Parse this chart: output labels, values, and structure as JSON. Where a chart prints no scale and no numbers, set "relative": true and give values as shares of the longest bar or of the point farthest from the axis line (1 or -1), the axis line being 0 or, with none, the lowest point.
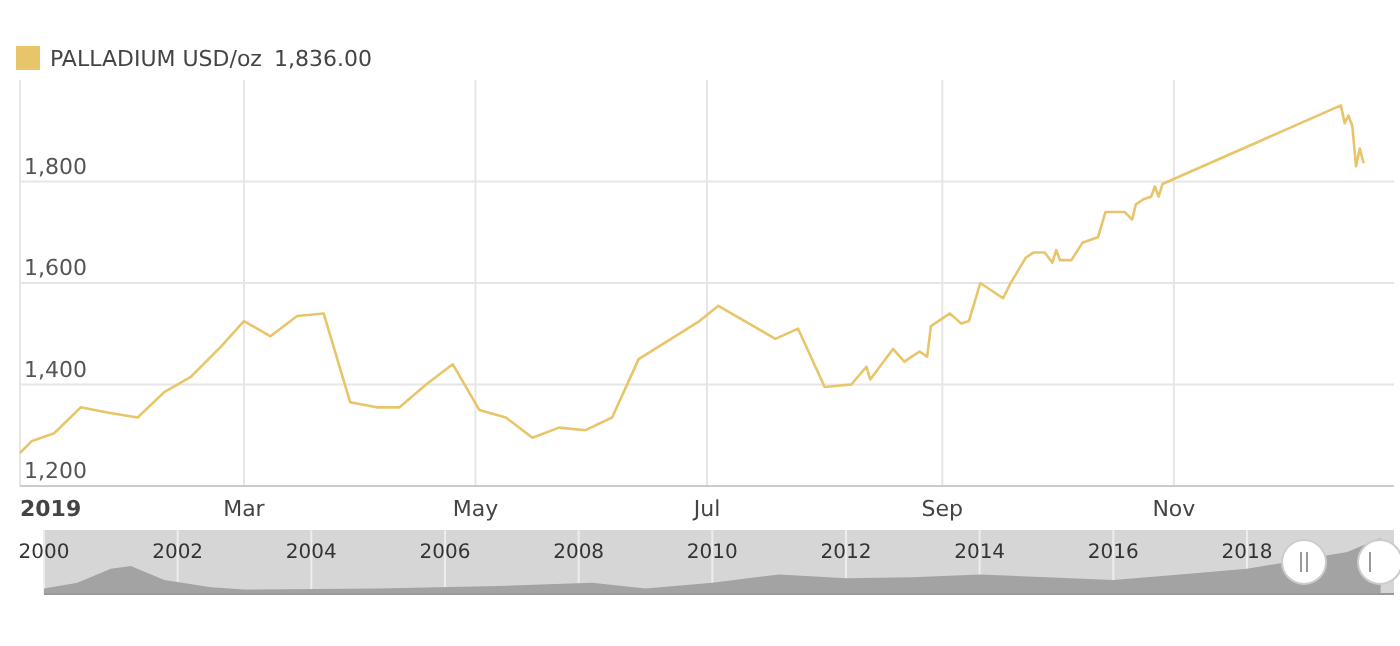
{
  "chart_data": [
    {
      "type": "line",
      "series": [
        {
          "name": "PALLADIUM USD/oz",
          "color": "#e8c56a",
          "x": [
            "2019-01-01",
            "2019-01-04",
            "2019-01-10",
            "2019-01-17",
            "2019-01-24",
            "2019-02-01",
            "2019-02-08",
            "2019-02-15",
            "2019-02-23",
            "2019-03-01",
            "2019-03-08",
            "2019-03-15",
            "2019-03-22",
            "2019-03-29",
            "2019-04-05",
            "2019-04-11",
            "2019-04-18",
            "2019-04-25",
            "2019-05-02",
            "2019-05-09",
            "2019-05-16",
            "2019-05-23",
            "2019-05-30",
            "2019-06-06",
            "2019-06-13",
            "2019-06-29",
            "2019-07-04",
            "2019-07-19",
            "2019-07-25",
            "2019-08-01",
            "2019-08-08",
            "2019-08-12",
            "2019-08-13",
            "2019-08-19",
            "2019-08-22",
            "2019-08-26",
            "2019-08-28",
            "2019-08-29",
            "2019-09-03",
            "2019-09-06",
            "2019-09-08",
            "2019-09-11",
            "2019-09-17",
            "2019-09-19",
            "2019-09-23",
            "2019-09-25",
            "2019-09-28",
            "2019-09-30",
            "2019-10-01",
            "2019-10-02",
            "2019-10-05",
            "2019-10-08",
            "2019-10-12",
            "2019-10-14",
            "2019-10-19",
            "2019-10-21",
            "2019-10-22",
            "2019-10-24",
            "2019-10-26",
            "2019-10-27",
            "2019-10-28",
            "2019-10-29",
            "2019-12-15",
            "2019-12-16",
            "2019-12-17",
            "2019-12-18",
            "2019-12-19",
            "2019-12-20",
            "2019-12-21"
          ],
          "values": [
            1265,
            1288,
            1304,
            1355,
            1345,
            1335,
            1385,
            1415,
            1475,
            1525,
            1495,
            1535,
            1540,
            1365,
            1355,
            1355,
            1400,
            1440,
            1350,
            1335,
            1295,
            1315,
            1310,
            1335,
            1450,
            1525,
            1555,
            1490,
            1510,
            1395,
            1400,
            1435,
            1410,
            1470,
            1445,
            1465,
            1455,
            1515,
            1540,
            1520,
            1525,
            1600,
            1570,
            1600,
            1650,
            1660,
            1660,
            1640,
            1665,
            1645,
            1645,
            1680,
            1690,
            1740,
            1740,
            1725,
            1755,
            1765,
            1770,
            1790,
            1770,
            1795,
            1950,
            1915,
            1930,
            1910,
            1830,
            1865,
            1836
          ]
        }
      ],
      "xlim": [
        "2019-01-01",
        "2019-12-29"
      ],
      "xticks": [
        {
          "value": "2019-01-01",
          "label": "2019"
        },
        {
          "value": "2019-03-01",
          "label": "Mar"
        },
        {
          "value": "2019-05-01",
          "label": "May"
        },
        {
          "value": "2019-07-01",
          "label": "Jul"
        },
        {
          "value": "2019-09-01",
          "label": "Sep"
        },
        {
          "value": "2019-11-01",
          "label": "Nov"
        }
      ],
      "ylim": [
        1200,
        2000
      ],
      "yticks": [
        {
          "value": 1200,
          "label": "1,200"
        },
        {
          "value": 1400,
          "label": "1,400"
        },
        {
          "value": 1600,
          "label": "1,600"
        },
        {
          "value": 1800,
          "label": "1,800"
        }
      ],
      "grid": true,
      "legend": "top left",
      "annotations": [
        "1,836.00"
      ]
    },
    {
      "type": "area",
      "relative": true,
      "grid": "x",
      "tick_labels": "x",
      "series": [
        {
          "color": "#a3a3a3",
          "x": [
            2000,
            2000.5,
            2001,
            2001.3,
            2001.8,
            2002.5,
            2003,
            2005,
            2007,
            2008.2,
            2009,
            2010,
            2011,
            2012,
            2013,
            2014,
            2015,
            2016,
            2017,
            2018,
            2019.5,
            2020
          ],
          "values": [
            0.1,
            0.2,
            0.45,
            0.5,
            0.25,
            0.12,
            0.08,
            0.1,
            0.15,
            0.2,
            0.1,
            0.2,
            0.35,
            0.28,
            0.3,
            0.35,
            0.3,
            0.25,
            0.35,
            0.45,
            0.75,
            1
          ]
        }
      ],
      "xlim": [
        2000,
        2020.2
      ],
      "xticks": [
        2000,
        2002,
        2004,
        2006,
        2008,
        2010,
        2012,
        2014,
        2016,
        2018
      ]
    }
  ]
}
